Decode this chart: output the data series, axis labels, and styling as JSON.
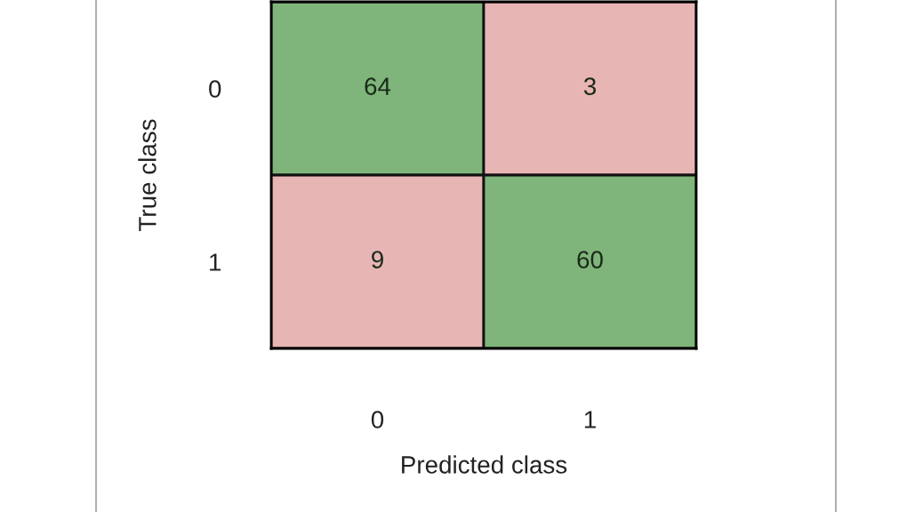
{
  "chart_data": {
    "type": "heatmap",
    "xlabel": "Predicted class",
    "ylabel": "True class",
    "categories": [
      "0",
      "1"
    ],
    "y_categories": [
      "0",
      "1"
    ],
    "cells": [
      [
        64,
        3
      ],
      [
        9,
        60
      ]
    ],
    "colors": [
      [
        "#7fb57a",
        "#e8b5b5"
      ],
      [
        "#e8b5b5",
        "#7fb57a"
      ]
    ],
    "data_labels": true
  }
}
